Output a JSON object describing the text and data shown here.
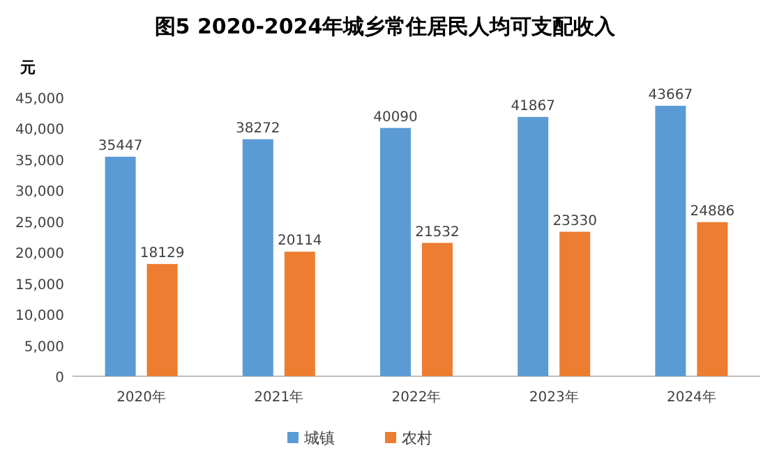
{
  "chart_data": {
    "type": "bar",
    "title": "图5  2020-2024年城乡常住居民人均可支配收入",
    "ylabel": "元",
    "categories": [
      "2020年",
      "2021年",
      "2022年",
      "2023年",
      "2024年"
    ],
    "series": [
      {
        "name": "城镇",
        "color": "#5b9bd5",
        "values": [
          35447,
          38272,
          40090,
          41867,
          43667
        ]
      },
      {
        "name": "农村",
        "color": "#ed7d31",
        "values": [
          18129,
          20114,
          21532,
          23330,
          24886
        ]
      }
    ],
    "ylim": [
      0,
      45000
    ],
    "yticks": [
      0,
      {
        "value": 5000,
        "label": "5,000"
      },
      {
        "value": 10000,
        "label": "10,000"
      },
      {
        "value": 15000,
        "label": "15,000"
      },
      {
        "value": 20000,
        "label": "20,000"
      },
      {
        "value": 25000,
        "label": "25,000"
      },
      {
        "value": 30000,
        "label": "30,000"
      },
      {
        "value": 35000,
        "label": "35,000"
      },
      {
        "value": 40000,
        "label": "40,000"
      },
      {
        "value": 45000,
        "label": "45,000"
      }
    ],
    "data_labels": true,
    "legend": "bottom",
    "grid": false
  }
}
